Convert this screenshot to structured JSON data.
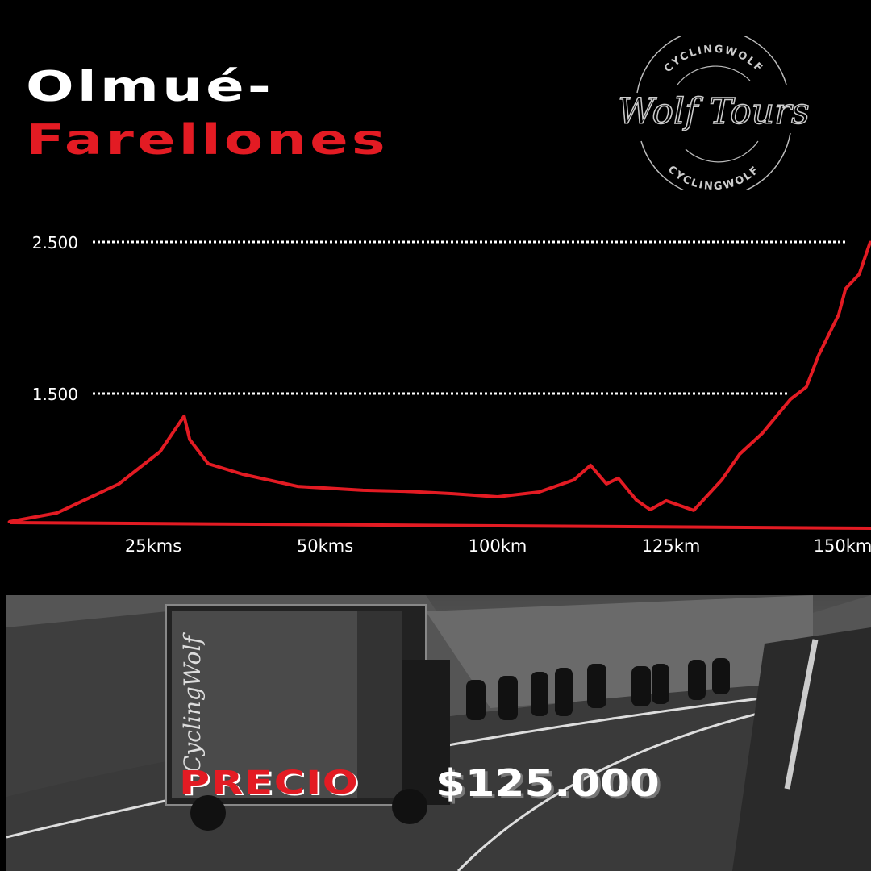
{
  "title": {
    "line1": "Olmué-",
    "line2": "Farellones"
  },
  "logo": {
    "top_text": "CYCLINGWOLF",
    "script_text": "Wolf Tours",
    "bottom_text": "CYCLINGWOLF"
  },
  "colors": {
    "accent": "#e31b23",
    "background": "#000000",
    "text": "#ffffff"
  },
  "chart_data": {
    "type": "line",
    "title": "",
    "xlabel": "",
    "ylabel": "",
    "x_tick_labels": [
      "25kms",
      "50kms",
      "100km",
      "125km",
      "150km"
    ],
    "x_tick_values": [
      25,
      50,
      100,
      125,
      150
    ],
    "y_tick_labels": [
      "2.500",
      "1.500"
    ],
    "y_tick_values": [
      2500,
      1500
    ],
    "gridlines": "dotted at y ticks",
    "series": [
      {
        "color": "#e31b23",
        "x": [
          4,
          11,
          20,
          26,
          29.5,
          30.3,
          33,
          38,
          46,
          61,
          73,
          87,
          100,
          106,
          111,
          113.4,
          115.7,
          117.4,
          120,
          122,
          124.3,
          128.3,
          132.4,
          135,
          138.3,
          142.4,
          144.7,
          146.5,
          149.4,
          150.4,
          152.4,
          154
        ],
        "y": [
          654,
          713,
          904,
          1117,
          1351,
          1197,
          1037,
          968,
          888,
          862,
          856,
          840,
          819,
          851,
          931,
          1027,
          904,
          942,
          798,
          734,
          793,
          729,
          931,
          1101,
          1239,
          1463,
          1543,
          1755,
          2021,
          2191,
          2287,
          2500
        ]
      }
    ]
  },
  "photo": {
    "truck_text": "CyclingWolf"
  },
  "price": {
    "label": "PRECIO",
    "value": "$125.000"
  }
}
